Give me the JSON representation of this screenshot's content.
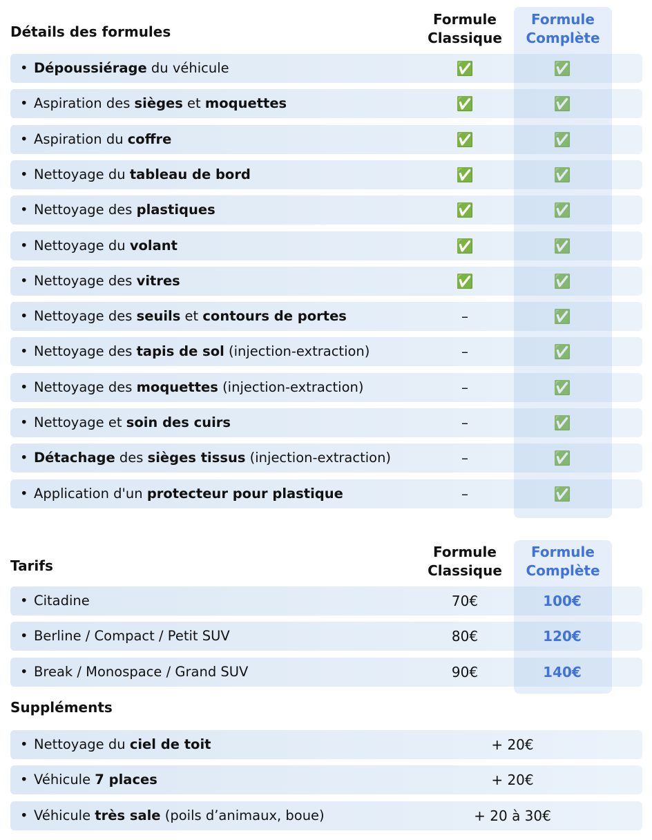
{
  "details": {
    "title": "Détails des formules",
    "columns": [
      "Formule Classique",
      "Formule Complète"
    ],
    "rows": [
      {
        "label": [
          {
            "text": "Dépoussiérage",
            "bold": true
          },
          {
            "text": " du véhicule"
          }
        ],
        "classique": "✅",
        "complete": "✅"
      },
      {
        "label": [
          {
            "text": "Aspiration des "
          },
          {
            "text": "sièges",
            "bold": true
          },
          {
            "text": " et "
          },
          {
            "text": "moquettes",
            "bold": true
          }
        ],
        "classique": "✅",
        "complete": "✅"
      },
      {
        "label": [
          {
            "text": "Aspiration du "
          },
          {
            "text": "coffre",
            "bold": true
          }
        ],
        "classique": "✅",
        "complete": "✅"
      },
      {
        "label": [
          {
            "text": "Nettoyage du "
          },
          {
            "text": "tableau de bord",
            "bold": true
          }
        ],
        "classique": "✅",
        "complete": "✅"
      },
      {
        "label": [
          {
            "text": "Nettoyage des "
          },
          {
            "text": "plastiques",
            "bold": true
          }
        ],
        "classique": "✅",
        "complete": "✅"
      },
      {
        "label": [
          {
            "text": "Nettoyage du "
          },
          {
            "text": "volant",
            "bold": true
          }
        ],
        "classique": "✅",
        "complete": "✅"
      },
      {
        "label": [
          {
            "text": "Nettoyage des "
          },
          {
            "text": "vitres",
            "bold": true
          }
        ],
        "classique": "✅",
        "complete": "✅"
      },
      {
        "label": [
          {
            "text": "Nettoyage des "
          },
          {
            "text": "seuils",
            "bold": true
          },
          {
            "text": " et "
          },
          {
            "text": "contours de portes",
            "bold": true
          }
        ],
        "classique": "–",
        "complete": "✅"
      },
      {
        "label": [
          {
            "text": "Nettoyage des "
          },
          {
            "text": "tapis de sol",
            "bold": true
          },
          {
            "text": " (injection-extraction)"
          }
        ],
        "classique": "–",
        "complete": "✅"
      },
      {
        "label": [
          {
            "text": "Nettoyage des "
          },
          {
            "text": "moquettes",
            "bold": true
          },
          {
            "text": " (injection-extraction)"
          }
        ],
        "classique": "–",
        "complete": "✅"
      },
      {
        "label": [
          {
            "text": "Nettoyage et "
          },
          {
            "text": "soin des cuirs",
            "bold": true
          }
        ],
        "classique": "–",
        "complete": "✅"
      },
      {
        "label": [
          {
            "text": "Détachage",
            "bold": true
          },
          {
            "text": " des "
          },
          {
            "text": "sièges tissus",
            "bold": true
          },
          {
            "text": " (injection-extraction)"
          }
        ],
        "classique": "–",
        "complete": "✅"
      },
      {
        "label": [
          {
            "text": "Application d'un "
          },
          {
            "text": "protecteur pour plastique",
            "bold": true
          }
        ],
        "classique": "–",
        "complete": "✅"
      }
    ]
  },
  "tarifs": {
    "title": "Tarifs",
    "columns": [
      "Formule Classique",
      "Formule Complète"
    ],
    "rows": [
      {
        "label": [
          {
            "text": "Citadine"
          }
        ],
        "classique": "70€",
        "complete": "100€"
      },
      {
        "label": [
          {
            "text": "Berline / Compact / Petit SUV"
          }
        ],
        "classique": "80€",
        "complete": "120€"
      },
      {
        "label": [
          {
            "text": "Break / Monospace / Grand SUV"
          }
        ],
        "classique": "90€",
        "complete": "140€"
      }
    ]
  },
  "supplements": {
    "title": "Suppléments",
    "rows": [
      {
        "label": [
          {
            "text": "Nettoyage du "
          },
          {
            "text": "ciel de toit",
            "bold": true
          }
        ],
        "price": "+ 20€"
      },
      {
        "label": [
          {
            "text": "Véhicule "
          },
          {
            "text": "7 places",
            "bold": true
          }
        ],
        "price": "+ 20€"
      },
      {
        "label": [
          {
            "text": "Véhicule "
          },
          {
            "text": "très sale",
            "bold": true
          },
          {
            "text": " (poils d’animaux, boue)"
          }
        ],
        "price": "+ 20 à 30€"
      }
    ]
  }
}
